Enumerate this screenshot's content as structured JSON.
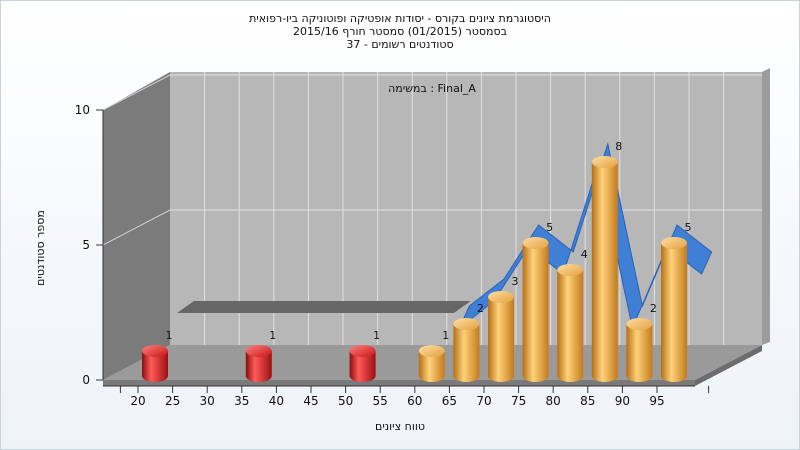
{
  "chart_data": {
    "type": "bar",
    "title_lines": [
      "היסטוגרמת ציונים בקורס - יסודות אופטיקה ופוטוניקה ביו-רפואית",
      "בסמסטר  (01/2015)  סמסטר חורף 2015/16",
      "סטודנטים רשומים - 37"
    ],
    "annotation": "במשימה : Final_A",
    "xlabel": "טווח ציונים",
    "ylabel": "מספר סטודנטים",
    "x_ticks": [
      "20",
      "25",
      "30",
      "35",
      "40",
      "45",
      "50",
      "55",
      "60",
      "65",
      "70",
      "75",
      "80",
      "85",
      "90",
      "95"
    ],
    "y_ticks": [
      "0",
      "5",
      "10"
    ],
    "ylim": [
      0,
      10
    ],
    "bins": [
      {
        "lower": 20,
        "upper": 25,
        "value": 1,
        "color": "#e31b1b"
      },
      {
        "lower": 35,
        "upper": 40,
        "value": 1,
        "color": "#e31b1b"
      },
      {
        "lower": 50,
        "upper": 55,
        "value": 1,
        "color": "#e31b1b"
      },
      {
        "lower": 60,
        "upper": 65,
        "value": 1,
        "color": "#e8a33a"
      },
      {
        "lower": 65,
        "upper": 70,
        "value": 2,
        "color": "#e8a33a"
      },
      {
        "lower": 70,
        "upper": 75,
        "value": 3,
        "color": "#e8a33a"
      },
      {
        "lower": 75,
        "upper": 80,
        "value": 5,
        "color": "#e8a33a"
      },
      {
        "lower": 80,
        "upper": 85,
        "value": 4,
        "color": "#e8a33a"
      },
      {
        "lower": 85,
        "upper": 90,
        "value": 8,
        "color": "#e8a33a"
      },
      {
        "lower": 90,
        "upper": 95,
        "value": 2,
        "color": "#e8a33a"
      },
      {
        "lower": 95,
        "upper": 100,
        "value": 5,
        "color": "#e8a33a"
      }
    ],
    "trend_line": {
      "color": "#3f7fd6",
      "x": [
        65,
        70,
        75,
        80,
        85,
        90,
        95,
        100
      ],
      "y": [
        2,
        3,
        5,
        4,
        8,
        2,
        5,
        4
      ]
    },
    "floor_band": {
      "color": "#666666",
      "from": 20,
      "to": 60,
      "y": 1
    },
    "colors": {
      "back_wall": "#b7b7b7",
      "side_wall": "#7b7b7b",
      "floor": "#9a9a9a",
      "grid": "#e0e0e0"
    }
  }
}
